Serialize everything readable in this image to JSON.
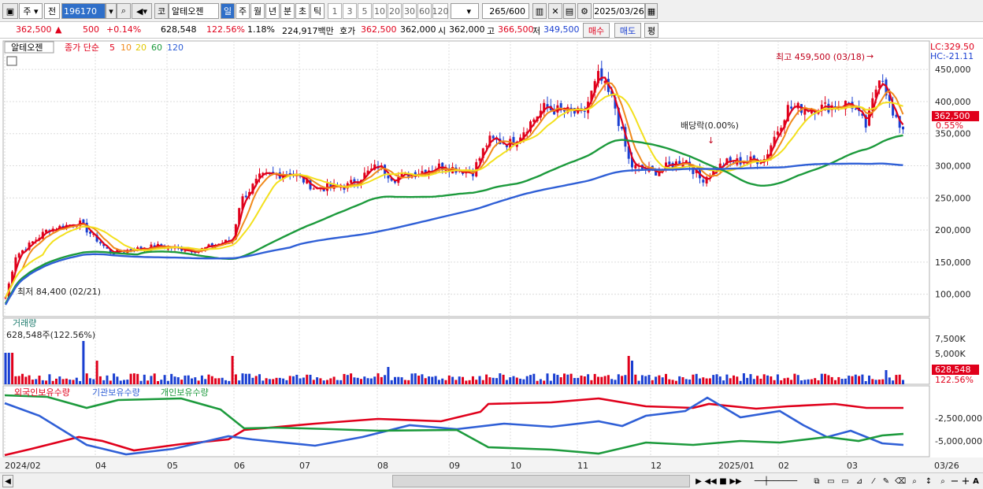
{
  "toolbar": {
    "period_btn": "주",
    "prev_btn": "전",
    "code": "196170",
    "market": "코",
    "name": "알테오젠",
    "tf": [
      "일",
      "주",
      "월",
      "년",
      "분",
      "초",
      "틱"
    ],
    "tf_selected": "일",
    "nums": [
      "1",
      "3",
      "5",
      "10",
      "20",
      "30",
      "60",
      "120"
    ],
    "count": "265",
    "count_total": "/600",
    "date": "2025/03/26"
  },
  "quote": {
    "price": "362,500",
    "arrow": "▲",
    "change": "500",
    "change_pct": "+0.14%",
    "volume": "628,548",
    "vol_ratio": "122.56%",
    "turnover": "1.18%",
    "amount": "224,917백만",
    "hoga_label": "호가",
    "hoga": "362,500",
    "open_val": "362,000",
    "open_label": "시",
    "open2": "362,000",
    "high_label": "고",
    "high": "366,500",
    "low_label": "저",
    "low": "349,500",
    "buy": "매수",
    "sell": "매도",
    "eval": "평"
  },
  "main_chart": {
    "stock_label": "알테오젠",
    "ma_label": "종가 단순",
    "ma_periods": [
      "5",
      "10",
      "20",
      "60",
      "120"
    ],
    "ma_colors": [
      "#e0001b",
      "#f08a1c",
      "#f3e01c",
      "#1c9a3c",
      "#2f5fd6"
    ],
    "lc": "LC:329.50",
    "hc": "HC:-21.11",
    "high_note": "최고 459,500 (03/18)",
    "low_note": "최저 84,400 (02/21)",
    "dividend_note": "배당락(0.00%)",
    "current_price_tag": "362,500",
    "current_pct_tag": "0.55%",
    "y_ticks": [
      "450,000",
      "400,000",
      "350,000",
      "300,000",
      "250,000",
      "200,000",
      "150,000",
      "100,000"
    ],
    "y_tick_values": [
      450000,
      400000,
      350000,
      300000,
      250000,
      200000,
      150000,
      100000
    ]
  },
  "volume_chart": {
    "title": "거래량",
    "value": "628,548주(122.56%)",
    "y_ticks": [
      "7,500K",
      "5,000K"
    ],
    "tag_value": "628,548",
    "tag_pct": "122.56%"
  },
  "holding_chart": {
    "series": [
      "외국인보유수량",
      "기관보유수량",
      "개인보유수량"
    ],
    "colors": [
      "#e0001b",
      "#2f5fd6",
      "#1c9a3c"
    ],
    "y_ticks": [
      "-2,500,000",
      "-5,000,000"
    ]
  },
  "x_axis": [
    "2024/02",
    "04",
    "05",
    "06",
    "07",
    "08",
    "09",
    "10",
    "11",
    "12",
    "2025/01",
    "02",
    "03"
  ],
  "x_end": "03/26"
}
